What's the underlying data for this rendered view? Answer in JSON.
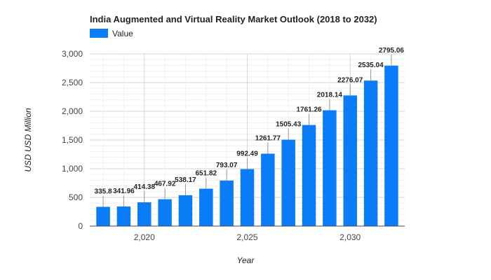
{
  "chart_data": {
    "type": "bar",
    "title": "India Augmented and Virtual Reality Market Outlook (2018 to 2032)",
    "xlabel": "Year",
    "ylabel": "USD USD Million",
    "legend": {
      "entries": [
        "Value"
      ],
      "placement": "top-left"
    },
    "colors": {
      "bar": "#0a7cf5",
      "grid": "#e3e3e3",
      "axis": "#444444"
    },
    "x": [
      2018,
      2019,
      2020,
      2021,
      2022,
      2023,
      2024,
      2025,
      2026,
      2027,
      2028,
      2029,
      2030,
      2031,
      2032
    ],
    "series": [
      {
        "name": "Value",
        "values": [
          335.8,
          341.96,
          414.38,
          467.92,
          538.17,
          651.82,
          793.07,
          992.49,
          1261.77,
          1505.43,
          1761.26,
          2018.14,
          2276.07,
          2535.04,
          2795.06
        ],
        "labels": [
          "335.8",
          "341.96",
          "414.38",
          "467.92",
          "538.17",
          "651.82",
          "793.07",
          "992.49",
          "1261.77",
          "1505.43",
          "1761.26",
          "2018.14",
          "2276.07",
          "2535.04",
          "2795.06"
        ]
      }
    ],
    "ylim": [
      0,
      3000
    ],
    "yticks": [
      0,
      500,
      1000,
      1500,
      2000,
      2500,
      3000
    ],
    "ytick_labels": [
      "0",
      "500",
      "1,000",
      "1,500",
      "2,000",
      "2,500",
      "3,000"
    ],
    "xticks": [
      2020,
      2025,
      2030
    ],
    "xtick_labels": [
      "2,020",
      "2,025",
      "2,030"
    ],
    "grid": true
  }
}
